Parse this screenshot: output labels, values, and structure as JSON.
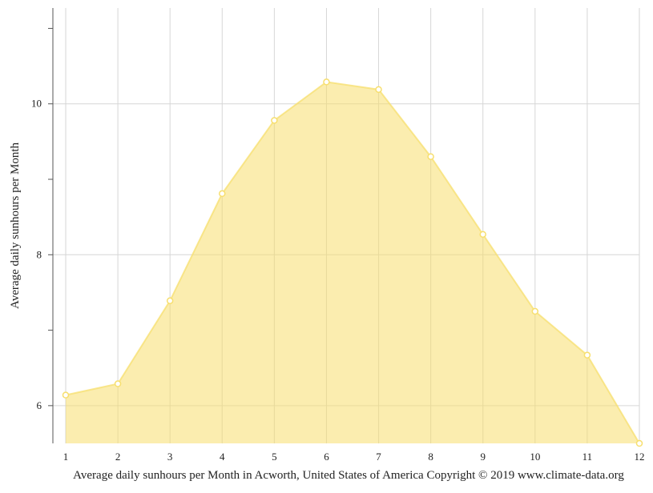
{
  "chart_data": {
    "type": "area",
    "x": [
      1,
      2,
      3,
      4,
      5,
      6,
      7,
      8,
      9,
      10,
      11,
      12
    ],
    "series": [
      {
        "values": [
          6.14,
          6.29,
          7.39,
          8.81,
          9.78,
          10.29,
          10.19,
          9.3,
          8.27,
          7.25,
          6.67,
          5.5
        ],
        "color": "#f7df6e"
      }
    ],
    "xlim": [
      1,
      12
    ],
    "ylim": [
      5.5,
      11.27
    ],
    "x_ticks": [
      "1",
      "2",
      "3",
      "4",
      "5",
      "6",
      "7",
      "8",
      "9",
      "10",
      "11",
      "12"
    ],
    "y_ticks": [
      "6",
      "8",
      "10"
    ],
    "y_minor_ticks": [
      7,
      9,
      11
    ],
    "grid": true,
    "xlabel": "",
    "ylabel": "Average daily sunhours per Month",
    "caption": "Average daily sunhours per Month in Acworth, United States of America Copyright © 2019 www.climate-data.org"
  }
}
